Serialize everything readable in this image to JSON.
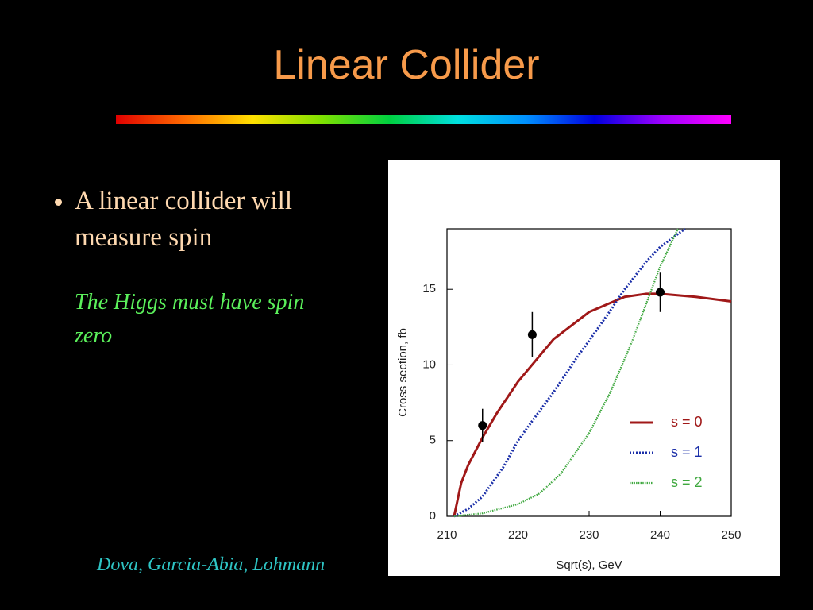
{
  "header": {
    "title": "Linear Collider"
  },
  "bullets": [
    {
      "text": "A linear collider will measure spin",
      "note": "The Higgs must have spin zero"
    }
  ],
  "citation": "Dova, Garcia-Abia, Lohmann",
  "chart_data": {
    "type": "line",
    "xlabel": "Sqrt(s),  GeV",
    "ylabel": "Cross section,  fb",
    "xlim": [
      210,
      250
    ],
    "ylim": [
      0,
      19
    ],
    "xticks": [
      210,
      220,
      230,
      240,
      250
    ],
    "yticks": [
      0,
      5,
      10,
      15
    ],
    "legend": "lower right",
    "series": [
      {
        "name": "s = 0",
        "color": "#a01818",
        "style": "solid",
        "x": [
          211,
          212,
          213,
          215,
          217,
          220,
          225,
          230,
          235,
          238,
          240,
          245,
          250
        ],
        "values": [
          0,
          2.2,
          3.4,
          5.2,
          6.8,
          8.9,
          11.7,
          13.5,
          14.5,
          14.7,
          14.7,
          14.5,
          14.2
        ]
      },
      {
        "name": "s = 1",
        "color": "#1a2ea8",
        "style": "dotted",
        "x": [
          211,
          213,
          215,
          218,
          220,
          222,
          225,
          228,
          230,
          233,
          235,
          238,
          240,
          243.5
        ],
        "values": [
          0,
          0.5,
          1.3,
          3.3,
          5.0,
          6.3,
          8.2,
          10.3,
          11.6,
          13.6,
          15.0,
          16.8,
          17.8,
          19
        ]
      },
      {
        "name": "s = 2",
        "color": "#3fa83f",
        "style": "fine",
        "x": [
          211,
          215,
          220,
          223,
          226,
          230,
          233,
          236,
          238,
          240,
          242,
          242.5
        ],
        "values": [
          0,
          0.2,
          0.8,
          1.5,
          2.8,
          5.5,
          8.2,
          11.5,
          14,
          16.5,
          18.5,
          19
        ]
      }
    ],
    "points": {
      "color": "#000000",
      "x": [
        215,
        222,
        240
      ],
      "values": [
        6.0,
        12.0,
        14.8
      ],
      "errors": [
        1.1,
        1.5,
        1.3
      ]
    }
  }
}
